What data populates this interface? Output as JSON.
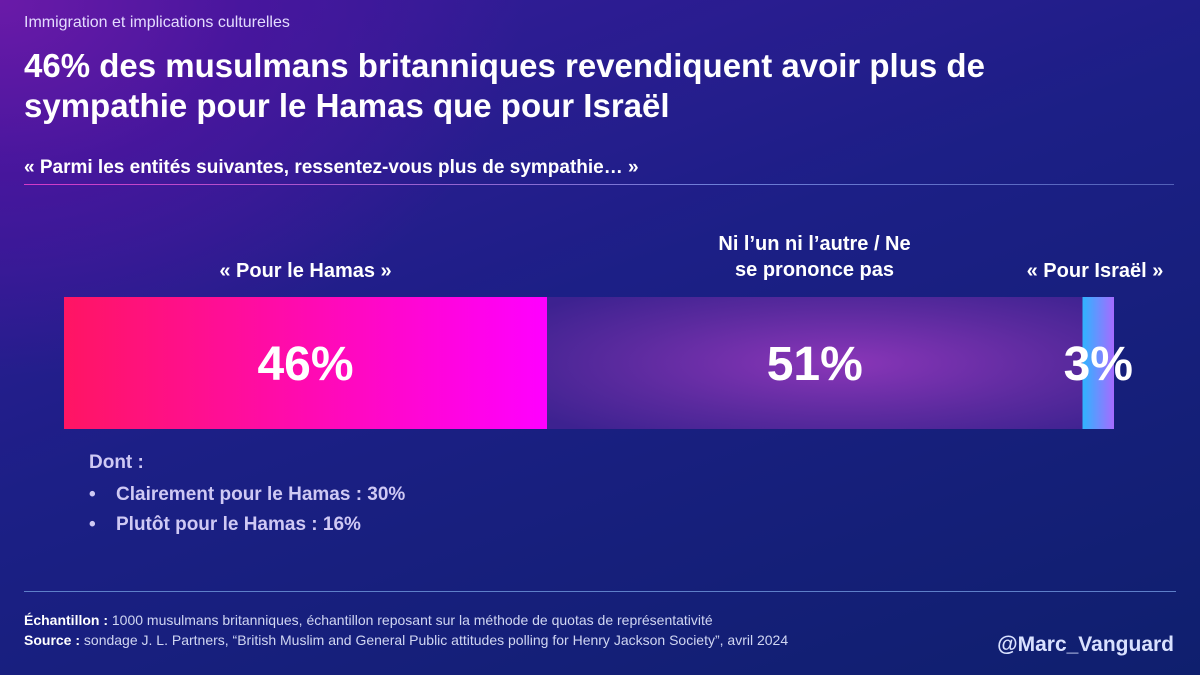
{
  "header": {
    "kicker": "Immigration et implications culturelles",
    "title": "46% des musulmans britanniques revendiquent avoir plus de sympathie pour le Hamas que pour Israël",
    "question": "« Parmi les entités suivantes, ressentez-vous plus de sympathie… »"
  },
  "chart_data": {
    "type": "bar",
    "orientation": "horizontal-stacked-100",
    "title": "46% des musulmans britanniques revendiquent avoir plus de sympathie pour le Hamas que pour Israël",
    "categories": [
      "« Pour le Hamas »",
      "Ni l’un ni l’autre / Ne se prononce pas",
      "« Pour Israël »"
    ],
    "values": [
      46,
      51,
      3
    ],
    "value_labels": [
      "46%",
      "51%",
      "3%"
    ],
    "unit": "%",
    "colors": [
      "#ff1a6e",
      "#7a2fb0",
      "#3fa0ff"
    ],
    "xlim": [
      0,
      100
    ],
    "grid": false
  },
  "labels": {
    "neither_line1": "Ni l’un ni l’autre / Ne",
    "neither_line2": "se prononce pas"
  },
  "breakdown": {
    "heading": "Dont :",
    "bullet": "•",
    "items": [
      "Clairement pour le Hamas : 30%",
      "Plutôt pour le Hamas : 16%"
    ]
  },
  "footer": {
    "sample_label": "Échantillon :",
    "sample_text": " 1000 musulmans britanniques, échantillon reposant sur la méthode de quotas de représentativité",
    "source_label": "Source :",
    "source_text": " sondage J. L. Partners, “British Muslim and General Public attitudes polling for Henry Jackson Society”, avril 2024",
    "handle": "@Marc_Vanguard"
  }
}
